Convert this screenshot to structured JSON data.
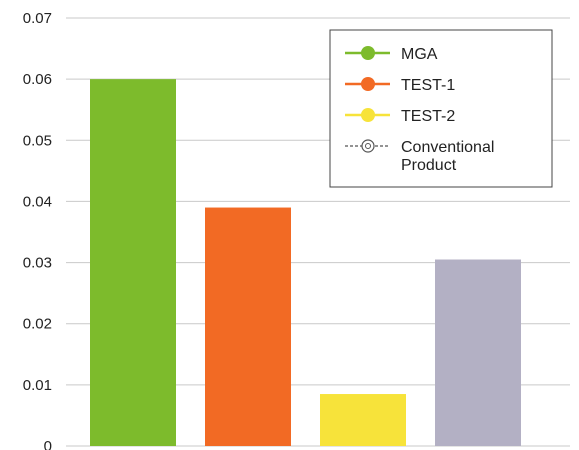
{
  "chart_data": {
    "type": "bar",
    "categories": [
      "MGA",
      "TEST-1",
      "TEST-2",
      "Conventional Product"
    ],
    "values": [
      0.06,
      0.039,
      0.0085,
      0.0305
    ],
    "ylim": [
      0,
      0.07
    ],
    "yticks": [
      "0",
      "0.01",
      "0.02",
      "0.03",
      "0.04",
      "0.05",
      "0.06",
      "0.07"
    ],
    "grid": true,
    "legend_position": "top-right",
    "legend": [
      {
        "label_lines": [
          "MGA"
        ],
        "color": "#7dbb2c",
        "marker": "circle"
      },
      {
        "label_lines": [
          "TEST-1"
        ],
        "color": "#f26a24",
        "marker": "circle"
      },
      {
        "label_lines": [
          "TEST-2"
        ],
        "color": "#f7e33a",
        "marker": "circle"
      },
      {
        "label_lines": [
          "Conventional",
          "Product"
        ],
        "color": "#b3b0c4",
        "marker": "patterned-circle"
      }
    ],
    "colors": [
      "#7dbb2c",
      "#f26a24",
      "#f7e33a",
      "#b3b0c4"
    ]
  }
}
